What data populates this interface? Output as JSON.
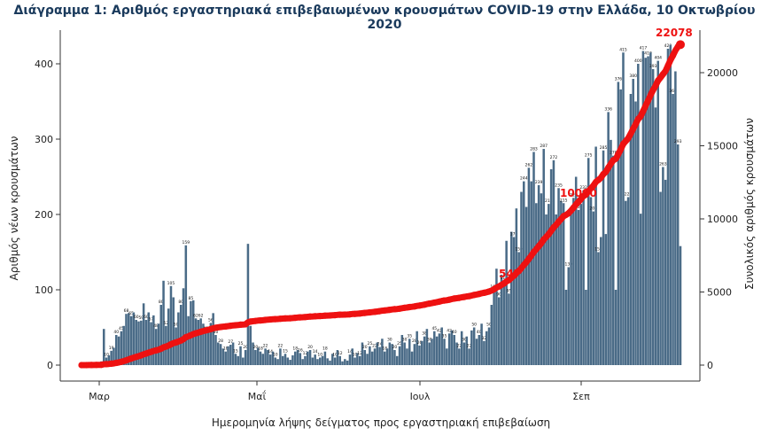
{
  "chart_data": {
    "type": "bar",
    "title": "Διάγραμμα 1: Αριθμός εργαστηριακά επιβεβαιωμένων κρουσμάτων COVID-19 στην Ελλάδα, 10 Οκτωβρίου 2020",
    "xlabel": "Ημερομηνία λήψης δείγματος προς εργαστηριακή επιβεβαίωση",
    "ylabel": "Αριθμός νέων κρουσμάτων",
    "y2label": "Συνολικός αριθμός κρουσμάτων",
    "x_ticks": [
      "Μαρ",
      "Μαΐ",
      "Ιουλ",
      "Σεπ"
    ],
    "y_ticks": [
      "0",
      "100",
      "200",
      "300",
      "400"
    ],
    "y2_ticks": [
      "0",
      "5000",
      "10000",
      "15000",
      "20000"
    ],
    "ylim": [
      0,
      440
    ],
    "y2lim": [
      0,
      22600
    ],
    "grid": false,
    "bar_color": "#4a6b87",
    "line_color": "#ee1111",
    "daily_cases": [
      1,
      1,
      1,
      2,
      1,
      2,
      3,
      2,
      5,
      48,
      10,
      13,
      19,
      23,
      40,
      38,
      45,
      52,
      68,
      69,
      65,
      70,
      60,
      58,
      59,
      82,
      60,
      70,
      57,
      66,
      48,
      55,
      80,
      112,
      52,
      75,
      105,
      90,
      50,
      70,
      80,
      102,
      159,
      65,
      85,
      86,
      62,
      60,
      62,
      55,
      45,
      48,
      56,
      69,
      40,
      30,
      28,
      22,
      18,
      25,
      27,
      30,
      15,
      12,
      25,
      10,
      20,
      161,
      52,
      30,
      20,
      23,
      18,
      15,
      22,
      20,
      14,
      18,
      10,
      8,
      22,
      12,
      15,
      10,
      7,
      13,
      18,
      20,
      16,
      8,
      12,
      18,
      20,
      10,
      14,
      8,
      10,
      12,
      18,
      9,
      6,
      15,
      10,
      20,
      12,
      5,
      8,
      6,
      14,
      22,
      10,
      16,
      12,
      30,
      20,
      15,
      25,
      18,
      22,
      30,
      24,
      35,
      18,
      22,
      30,
      28,
      20,
      12,
      25,
      40,
      30,
      22,
      35,
      18,
      28,
      45,
      26,
      32,
      38,
      48,
      30,
      35,
      45,
      38,
      42,
      50,
      35,
      22,
      42,
      46,
      40,
      30,
      22,
      45,
      30,
      38,
      22,
      46,
      50,
      35,
      40,
      55,
      32,
      45,
      50,
      80,
      100,
      128,
      90,
      120,
      112,
      165,
      95,
      177,
      170,
      208,
      150,
      230,
      244,
      210,
      262,
      244,
      283,
      215,
      239,
      228,
      287,
      200,
      214,
      260,
      272,
      200,
      235,
      218,
      215,
      100,
      130,
      209,
      222,
      250,
      206,
      214,
      232,
      100,
      275,
      223,
      204,
      290,
      150,
      170,
      285,
      174,
      336,
      299,
      278,
      100,
      376,
      366,
      415,
      218,
      223,
      360,
      380,
      350,
      400,
      201,
      417,
      408,
      410,
      415,
      393,
      342,
      404,
      230,
      263,
      246,
      420,
      425,
      360,
      390,
      293,
      158
    ],
    "cumulative_annotations": [
      "547",
      "10000",
      "22078"
    ],
    "cumulative_end": 22078
  }
}
